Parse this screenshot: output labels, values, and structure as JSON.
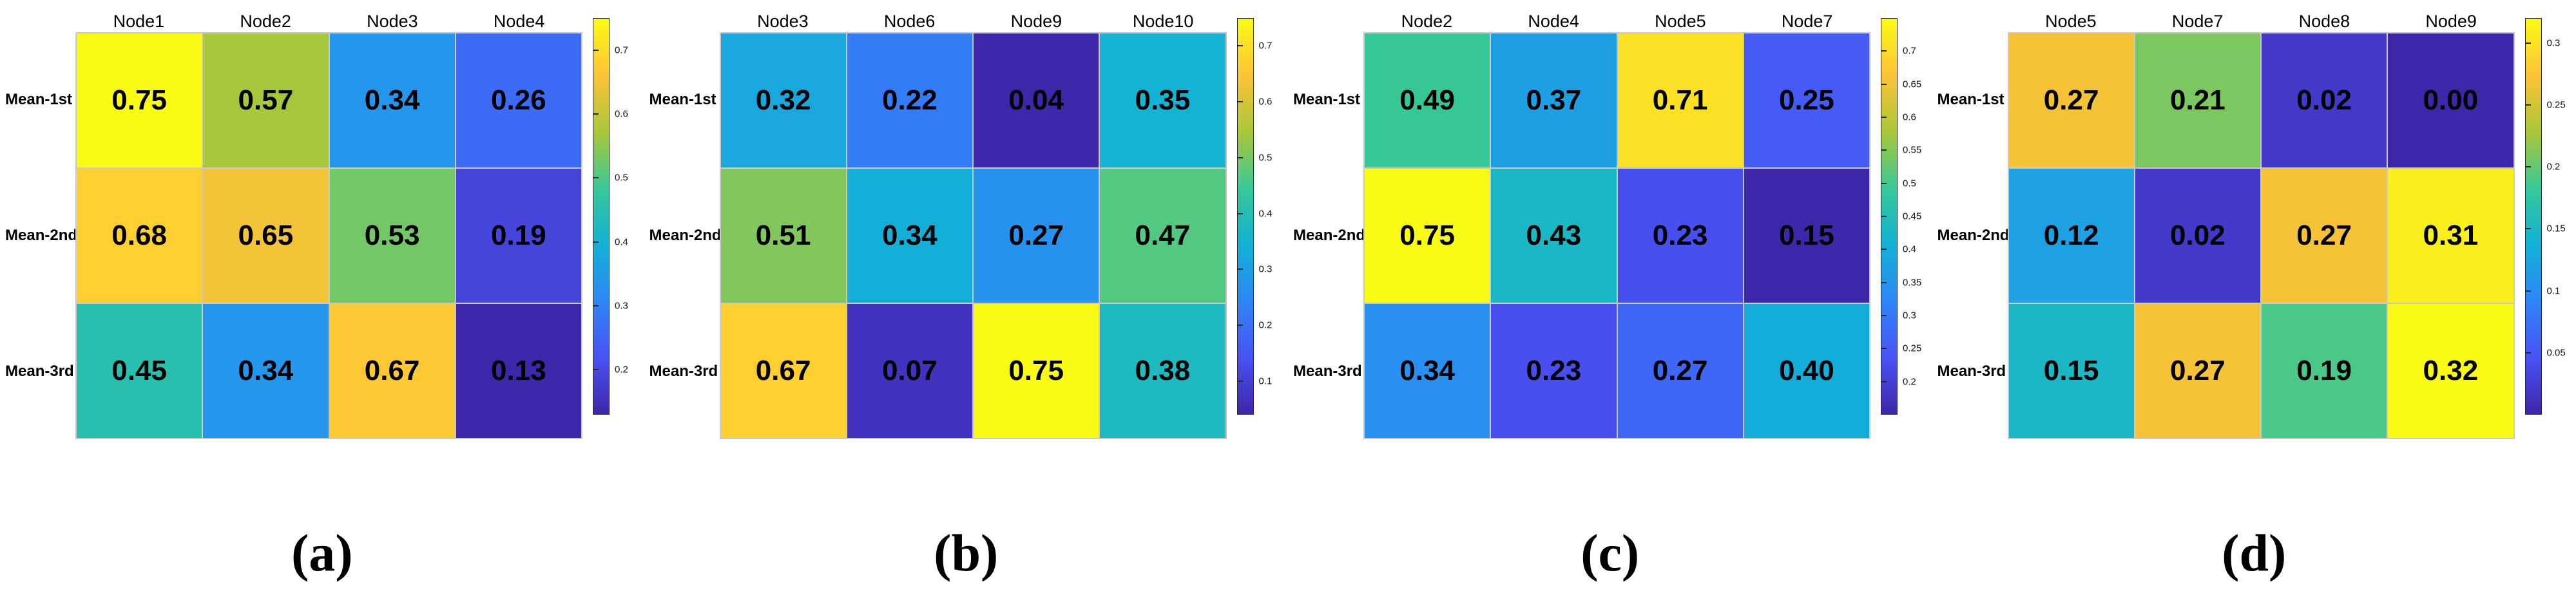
{
  "figure": {
    "background": "#ffffff"
  },
  "colormap": {
    "name": "parula",
    "stops": [
      {
        "t": 0.0,
        "color": "#3E26A8"
      },
      {
        "t": 0.143,
        "color": "#4852F4"
      },
      {
        "t": 0.286,
        "color": "#2E87F7"
      },
      {
        "t": 0.429,
        "color": "#12B1D6"
      },
      {
        "t": 0.571,
        "color": "#37C897"
      },
      {
        "t": 0.714,
        "color": "#ABC739"
      },
      {
        "t": 0.857,
        "color": "#FEC338"
      },
      {
        "t": 1.0,
        "color": "#F9FB15"
      }
    ]
  },
  "chart_data": [
    {
      "id": "a",
      "type": "heatmap",
      "caption": "(a)",
      "columns": [
        "Node1",
        "Node2",
        "Node3",
        "Node4"
      ],
      "rows": [
        "Mean-1st",
        "Mean-2nd",
        "Mean-3rd"
      ],
      "values": [
        [
          0.75,
          0.57,
          0.34,
          0.26
        ],
        [
          0.68,
          0.65,
          0.53,
          0.19
        ],
        [
          0.45,
          0.34,
          0.67,
          0.13
        ]
      ],
      "vmin": 0.13,
      "vmax": 0.75,
      "colorbar_ticks": [
        "0.7",
        "0.6",
        "0.5",
        "0.4",
        "0.3",
        "0.2"
      ],
      "legend_position": "right",
      "grid": false
    },
    {
      "id": "b",
      "type": "heatmap",
      "caption": "(b)",
      "columns": [
        "Node3",
        "Node6",
        "Node9",
        "Node10"
      ],
      "rows": [
        "Mean-1st",
        "Mean-2nd",
        "Mean-3rd"
      ],
      "values": [
        [
          0.32,
          0.22,
          0.04,
          0.35
        ],
        [
          0.51,
          0.34,
          0.27,
          0.47
        ],
        [
          0.67,
          0.07,
          0.75,
          0.38
        ]
      ],
      "vmin": 0.04,
      "vmax": 0.75,
      "colorbar_ticks": [
        "0.7",
        "0.6",
        "0.5",
        "0.4",
        "0.3",
        "0.2",
        "0.1"
      ],
      "legend_position": "right",
      "grid": false
    },
    {
      "id": "c",
      "type": "heatmap",
      "caption": "(c)",
      "columns": [
        "Node2",
        "Node4",
        "Node5",
        "Node7"
      ],
      "rows": [
        "Mean-1st",
        "Mean-2nd",
        "Mean-3rd"
      ],
      "values": [
        [
          0.49,
          0.37,
          0.71,
          0.25
        ],
        [
          0.75,
          0.43,
          0.23,
          0.15
        ],
        [
          0.34,
          0.23,
          0.27,
          0.4
        ]
      ],
      "vmin": 0.15,
      "vmax": 0.75,
      "colorbar_ticks": [
        "0.7",
        "0.65",
        "0.6",
        "0.55",
        "0.5",
        "0.45",
        "0.4",
        "0.35",
        "0.3",
        "0.25",
        "0.2"
      ],
      "legend_position": "right",
      "grid": false
    },
    {
      "id": "d",
      "type": "heatmap",
      "caption": "(d)",
      "columns": [
        "Node5",
        "Node7",
        "Node8",
        "Node9"
      ],
      "rows": [
        "Mean-1st",
        "Mean-2nd",
        "Mean-3rd"
      ],
      "values": [
        [
          0.27,
          0.21,
          0.02,
          0.0
        ],
        [
          0.12,
          0.02,
          0.27,
          0.31
        ],
        [
          0.15,
          0.27,
          0.19,
          0.32
        ]
      ],
      "vmin": 0.0,
      "vmax": 0.32,
      "colorbar_ticks": [
        "0.3",
        "0.25",
        "0.2",
        "0.15",
        "0.1",
        "0.05"
      ],
      "legend_position": "right",
      "grid": false
    }
  ]
}
